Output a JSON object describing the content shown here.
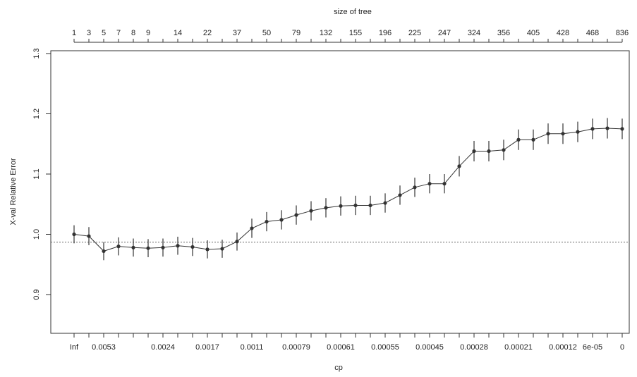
{
  "chart_data": {
    "type": "line",
    "title": "",
    "xlabel": "cp",
    "ylabel": "X-val Relative Error",
    "top_axis_label": "size of tree",
    "ylim": [
      0.85,
      1.31
    ],
    "y_ticks": [
      0.9,
      1.0,
      1.1,
      1.2,
      1.3
    ],
    "grid": false,
    "reference_line": {
      "y": 0.987,
      "style": "dotted"
    },
    "top_ticks": [
      "1",
      "3",
      "5",
      "7",
      "8",
      "9",
      "",
      "14",
      "",
      "22",
      "",
      "37",
      "",
      "50",
      "",
      "79",
      "",
      "132",
      "",
      "155",
      "",
      "196",
      "",
      "225",
      "",
      "247",
      "",
      "324",
      "",
      "356",
      "",
      "405",
      "",
      "428",
      "",
      "468",
      "",
      "836"
    ],
    "bottom_ticks": [
      "Inf",
      "",
      "0.0053",
      "",
      "",
      "",
      "0.0024",
      "",
      "",
      "0.0017",
      "",
      "",
      "0.0011",
      "",
      "",
      "0.00079",
      "",
      "",
      "0.00061",
      "",
      "",
      "0.00055",
      "",
      "",
      "0.00045",
      "",
      "",
      "0.00028",
      "",
      "",
      "0.00021",
      "",
      "",
      "0.00012",
      "",
      "6e-05",
      "",
      "0"
    ],
    "y": [
      1.0,
      0.997,
      0.972,
      0.98,
      0.978,
      0.977,
      0.978,
      0.981,
      0.979,
      0.975,
      0.976,
      0.988,
      1.01,
      1.021,
      1.024,
      1.032,
      1.039,
      1.044,
      1.047,
      1.048,
      1.048,
      1.052,
      1.065,
      1.078,
      1.084,
      1.084,
      1.113,
      1.138,
      1.138,
      1.14,
      1.157,
      1.157,
      1.167,
      1.167,
      1.17,
      1.175,
      1.176,
      1.175
    ],
    "errors": [
      0.015,
      0.015,
      0.015,
      0.015,
      0.015,
      0.015,
      0.015,
      0.015,
      0.015,
      0.015,
      0.015,
      0.015,
      0.016,
      0.016,
      0.016,
      0.016,
      0.016,
      0.016,
      0.016,
      0.016,
      0.016,
      0.016,
      0.016,
      0.016,
      0.016,
      0.016,
      0.017,
      0.017,
      0.017,
      0.017,
      0.017,
      0.017,
      0.017,
      0.017,
      0.017,
      0.017,
      0.017,
      0.017
    ]
  }
}
